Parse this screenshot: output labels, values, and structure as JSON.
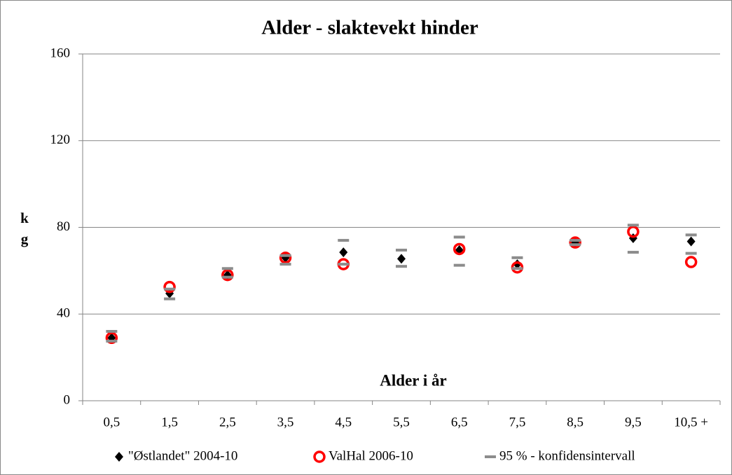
{
  "chart_data": {
    "type": "scatter",
    "title": "Alder - slaktevekt hinder",
    "xlabel": "Alder i år",
    "ylabel": "kg",
    "categories": [
      "0,5",
      "1,5",
      "2,5",
      "3,5",
      "4,5",
      "5,5",
      "6,5",
      "7,5",
      "8,5",
      "9,5",
      "10,5 +"
    ],
    "ylim": [
      0,
      160
    ],
    "yticks": [
      0,
      40,
      80,
      120,
      160
    ],
    "grid": true,
    "series": [
      {
        "name": "\"Østlandet\" 2004-10",
        "color": "#000000",
        "marker": "diamond",
        "values": [
          29,
          49.5,
          58,
          66,
          68.5,
          65.5,
          69.5,
          63,
          73,
          75,
          73.5
        ]
      },
      {
        "name": "ValHal 2006-10",
        "color": "#ff0000",
        "marker": "circle",
        "values": [
          29,
          52.5,
          58,
          66,
          63,
          null,
          70,
          61.5,
          73,
          78,
          64
        ]
      },
      {
        "name": "95 % - konfidensintervall",
        "color": "#8c8c8c",
        "marker": "dash",
        "lower": [
          27.5,
          47,
          57,
          63,
          63,
          62,
          62.5,
          61,
          72,
          68.5,
          68
        ],
        "upper": [
          32,
          51.5,
          61,
          67,
          74,
          69.5,
          75.5,
          66,
          74,
          81,
          76.5
        ]
      }
    ]
  }
}
